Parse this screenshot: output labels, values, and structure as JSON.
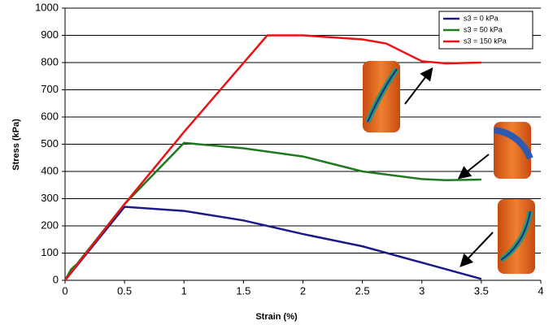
{
  "chart_data": {
    "type": "line",
    "xlabel": "Strain (%)",
    "ylabel": "Stress (kPa)",
    "xlim": [
      0,
      4
    ],
    "xticks": [
      0,
      0.5,
      1,
      1.5,
      2,
      2.5,
      3,
      3.5,
      4
    ],
    "ylim": [
      0,
      1000
    ],
    "yticks": [
      0,
      100,
      200,
      300,
      400,
      500,
      600,
      700,
      800,
      900,
      1000
    ],
    "grid": true,
    "legend": "upper-right",
    "series": [
      {
        "name": "s3 = 0 kPa",
        "color": "#1a1a8c",
        "x": [
          0,
          0.5,
          1,
          1.5,
          2,
          2.5,
          3,
          3.5
        ],
        "values": [
          0,
          270,
          255,
          220,
          170,
          125,
          65,
          5
        ]
      },
      {
        "name": "s3 = 50 kPa",
        "color": "#1f7a1f",
        "x": [
          0,
          0.05,
          0.1,
          0.5,
          1,
          1.5,
          2,
          2.5,
          3,
          3.2,
          3.5
        ],
        "values": [
          0,
          40,
          60,
          280,
          505,
          485,
          455,
          400,
          372,
          368,
          370
        ]
      },
      {
        "name": "s3 = 150 kPa",
        "color": "#ee1111",
        "x": [
          0,
          0.5,
          1,
          1.7,
          2,
          2.5,
          2.7,
          3,
          3.2,
          3.5
        ],
        "values": [
          0,
          280,
          545,
          900,
          900,
          885,
          870,
          805,
          797,
          800
        ]
      }
    ]
  }
}
